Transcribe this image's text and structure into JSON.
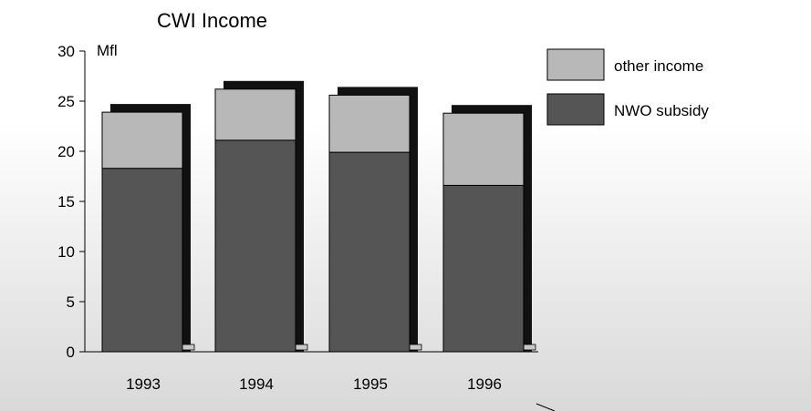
{
  "chart_data": {
    "type": "bar",
    "stacked": true,
    "title": "CWI Income",
    "ylabel": "Mfl",
    "categories": [
      "1993",
      "1994",
      "1995",
      "1996"
    ],
    "series": [
      {
        "name": "NWO subsidy",
        "values": [
          18.3,
          21.1,
          19.9,
          16.6
        ],
        "color": "#555555"
      },
      {
        "name": "other income",
        "values": [
          5.6,
          5.1,
          5.7,
          7.2
        ],
        "color": "#b8b8b8"
      }
    ],
    "yticks": [
      "0",
      "5",
      "10",
      "15",
      "20",
      "25",
      "30"
    ],
    "ylim": [
      0,
      30
    ],
    "legend": {
      "position": "top-right",
      "items": [
        "other income",
        "NWO subsidy"
      ]
    },
    "grid": false
  }
}
